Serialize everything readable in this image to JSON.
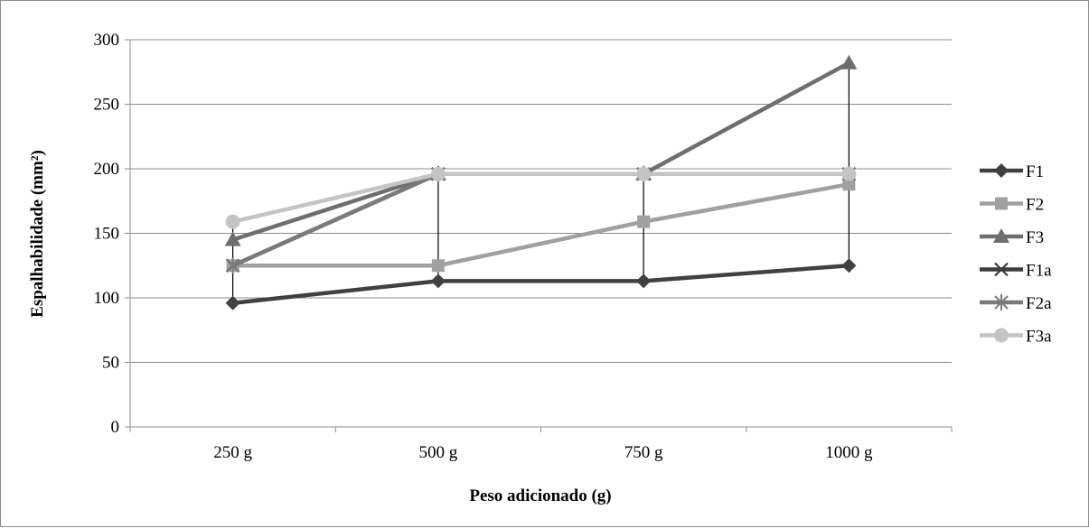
{
  "chart_data": {
    "type": "line",
    "title": "",
    "xlabel": "Peso adicionado (g)",
    "ylabel": "Espalhabilidade (mm²)",
    "categories": [
      "250 g",
      "500 g",
      "750 g",
      "1000 g"
    ],
    "ylim": [
      0,
      300
    ],
    "yticks": [
      0,
      50,
      100,
      150,
      200,
      250,
      300
    ],
    "grid": true,
    "legend_position": "right",
    "high_low_lines": true,
    "series": [
      {
        "name": "F1",
        "values": [
          96,
          113,
          113,
          125
        ],
        "color": "#404040",
        "marker": "diamond"
      },
      {
        "name": "F2",
        "values": [
          125,
          125,
          159,
          188
        ],
        "color": "#a0a0a0",
        "marker": "square"
      },
      {
        "name": "F3",
        "values": [
          145,
          196,
          196,
          282
        ],
        "color": "#6e6e6e",
        "marker": "triangle"
      },
      {
        "name": "F1a",
        "values": [
          125,
          196,
          196,
          196
        ],
        "color": "#3c3c3c",
        "marker": "x"
      },
      {
        "name": "F2a",
        "values": [
          125,
          196,
          196,
          196
        ],
        "color": "#7a7a7a",
        "marker": "star"
      },
      {
        "name": "F3a",
        "values": [
          159,
          196,
          196,
          196
        ],
        "color": "#c4c4c4",
        "marker": "circle"
      }
    ]
  }
}
